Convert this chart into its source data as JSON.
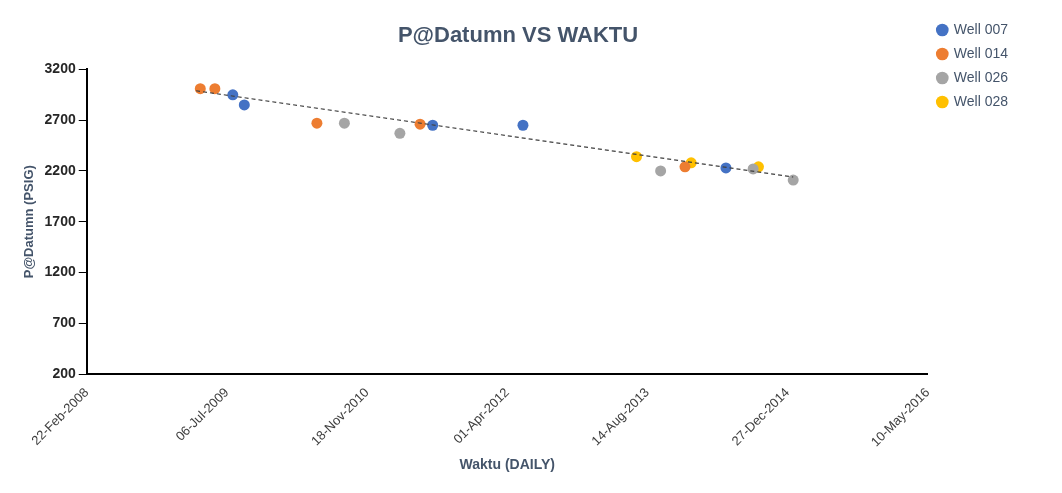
{
  "chart_data": {
    "type": "scatter",
    "title": "P@Datumn VS WAKTU",
    "xlabel": "Waktu (DAILY)",
    "ylabel": "P@Datumn (PSIG)",
    "series": [
      {
        "name": "Well 007",
        "color": "#4472c4",
        "x": [
          "2009-07-27",
          "2009-09-06",
          "2011-07-10",
          "2012-05-27",
          "2014-05-21"
        ],
        "values": [
          2950,
          2850,
          2650,
          2650,
          2230
        ]
      },
      {
        "name": "Well 014",
        "color": "#ed7d31",
        "x": [
          "2009-04-02",
          "2009-05-24",
          "2010-05-23",
          "2011-05-26",
          "2013-12-26"
        ],
        "values": [
          3010,
          3010,
          2670,
          2660,
          2240
        ]
      },
      {
        "name": "Well 026",
        "color": "#a5a5a5",
        "x": [
          "2010-08-29",
          "2011-03-15",
          "2013-09-30",
          "2014-08-26",
          "2015-01-16"
        ],
        "values": [
          2670,
          2570,
          2200,
          2220,
          2110
        ]
      },
      {
        "name": "Well 028",
        "color": "#ffc000",
        "x": [
          "2013-07-06",
          "2014-01-17",
          "2014-09-14"
        ],
        "values": [
          2340,
          2280,
          2240
        ]
      },
      {
        "type": "line",
        "color": "#404040",
        "line_style": "dashed",
        "marker": "none",
        "x": [
          "2009-03-18",
          "2015-01-16"
        ],
        "values": [
          2990,
          2140
        ]
      }
    ],
    "marker": "circle",
    "xlim": [
      "2008-02-22",
      "2016-05-10"
    ],
    "xticks": [
      {
        "value": "2008-02-22",
        "label": "22-Feb-2008"
      },
      {
        "value": "2009-07-06",
        "label": "06-Jul-2009"
      },
      {
        "value": "2010-11-18",
        "label": "18-Nov-2010"
      },
      {
        "value": "2012-04-01",
        "label": "01-Apr-2012"
      },
      {
        "value": "2013-08-14",
        "label": "14-Aug-2013"
      },
      {
        "value": "2014-12-27",
        "label": "27-Dec-2014"
      },
      {
        "value": "2016-05-10",
        "label": "10-May-2016"
      }
    ],
    "ylim": [
      200,
      3200
    ],
    "yticks": [
      200,
      700,
      1200,
      1700,
      2200,
      2700,
      3200
    ],
    "grid": false,
    "legend": "top right"
  }
}
